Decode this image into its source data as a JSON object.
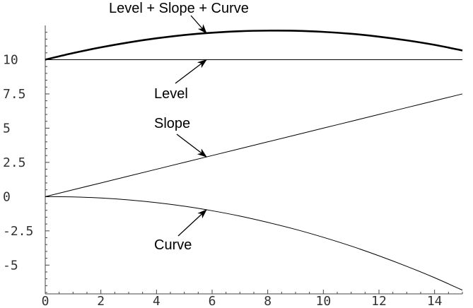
{
  "chart_data": {
    "type": "line",
    "title": "",
    "xlabel": "",
    "ylabel": "",
    "xlim": [
      0,
      15
    ],
    "ylim": [
      -7.1,
      12.5
    ],
    "grid": false,
    "legend": "none",
    "x_ticks": [
      {
        "value": 0,
        "label": "0"
      },
      {
        "value": 2,
        "label": "2"
      },
      {
        "value": 4,
        "label": "4"
      },
      {
        "value": 6,
        "label": "6"
      },
      {
        "value": 8,
        "label": "8"
      },
      {
        "value": 10,
        "label": "10"
      },
      {
        "value": 12,
        "label": "12"
      },
      {
        "value": 14,
        "label": "14"
      }
    ],
    "y_ticks": [
      {
        "value": -5,
        "label": "-5"
      },
      {
        "value": -2.5,
        "label": "-2.5"
      },
      {
        "value": 0,
        "label": "0"
      },
      {
        "value": 2.5,
        "label": "2.5"
      },
      {
        "value": 5,
        "label": "5"
      },
      {
        "value": 7.5,
        "label": "7.5"
      },
      {
        "value": 10,
        "label": "10"
      }
    ],
    "x": [
      0,
      1,
      2,
      3,
      4,
      5,
      6,
      7,
      8,
      9,
      10,
      11,
      12,
      13,
      14,
      15
    ],
    "series": [
      {
        "key": "level-slope-curve",
        "color": "#000000",
        "bold": true,
        "values": [
          10.0,
          10.48,
          10.9,
          11.26,
          11.56,
          11.8,
          11.97,
          12.08,
          12.12,
          12.11,
          12.03,
          11.89,
          11.68,
          11.41,
          11.08,
          10.67
        ]
      },
      {
        "key": "level",
        "color": "#000000",
        "bold": false,
        "values": [
          10,
          10,
          10,
          10,
          10,
          10,
          10,
          10,
          10,
          10,
          10,
          10,
          10,
          10,
          10,
          10
        ]
      },
      {
        "key": "slope",
        "color": "#000000",
        "bold": false,
        "values": [
          0,
          0.5,
          1.0,
          1.5,
          2.0,
          2.5,
          3.0,
          3.5,
          4.0,
          4.5,
          5.0,
          5.5,
          6.0,
          6.5,
          7.0,
          7.5
        ]
      },
      {
        "key": "curve",
        "color": "#000000",
        "bold": false,
        "values": [
          0.0,
          -0.02,
          -0.1,
          -0.24,
          -0.44,
          -0.7,
          -1.03,
          -1.42,
          -1.88,
          -2.39,
          -2.97,
          -3.61,
          -4.32,
          -5.09,
          -5.92,
          -6.83
        ]
      }
    ],
    "annotations": [
      {
        "key": "level-slope-curve",
        "text": "Level + Slope + Curve",
        "target": [
          5.8,
          11.92
        ]
      },
      {
        "key": "level",
        "text": "Level",
        "target": [
          5.8,
          10.0
        ]
      },
      {
        "key": "slope",
        "text": "Slope",
        "target": [
          5.8,
          2.9
        ]
      },
      {
        "key": "curve",
        "text": "Curve",
        "target": [
          5.8,
          -0.95
        ]
      }
    ]
  }
}
